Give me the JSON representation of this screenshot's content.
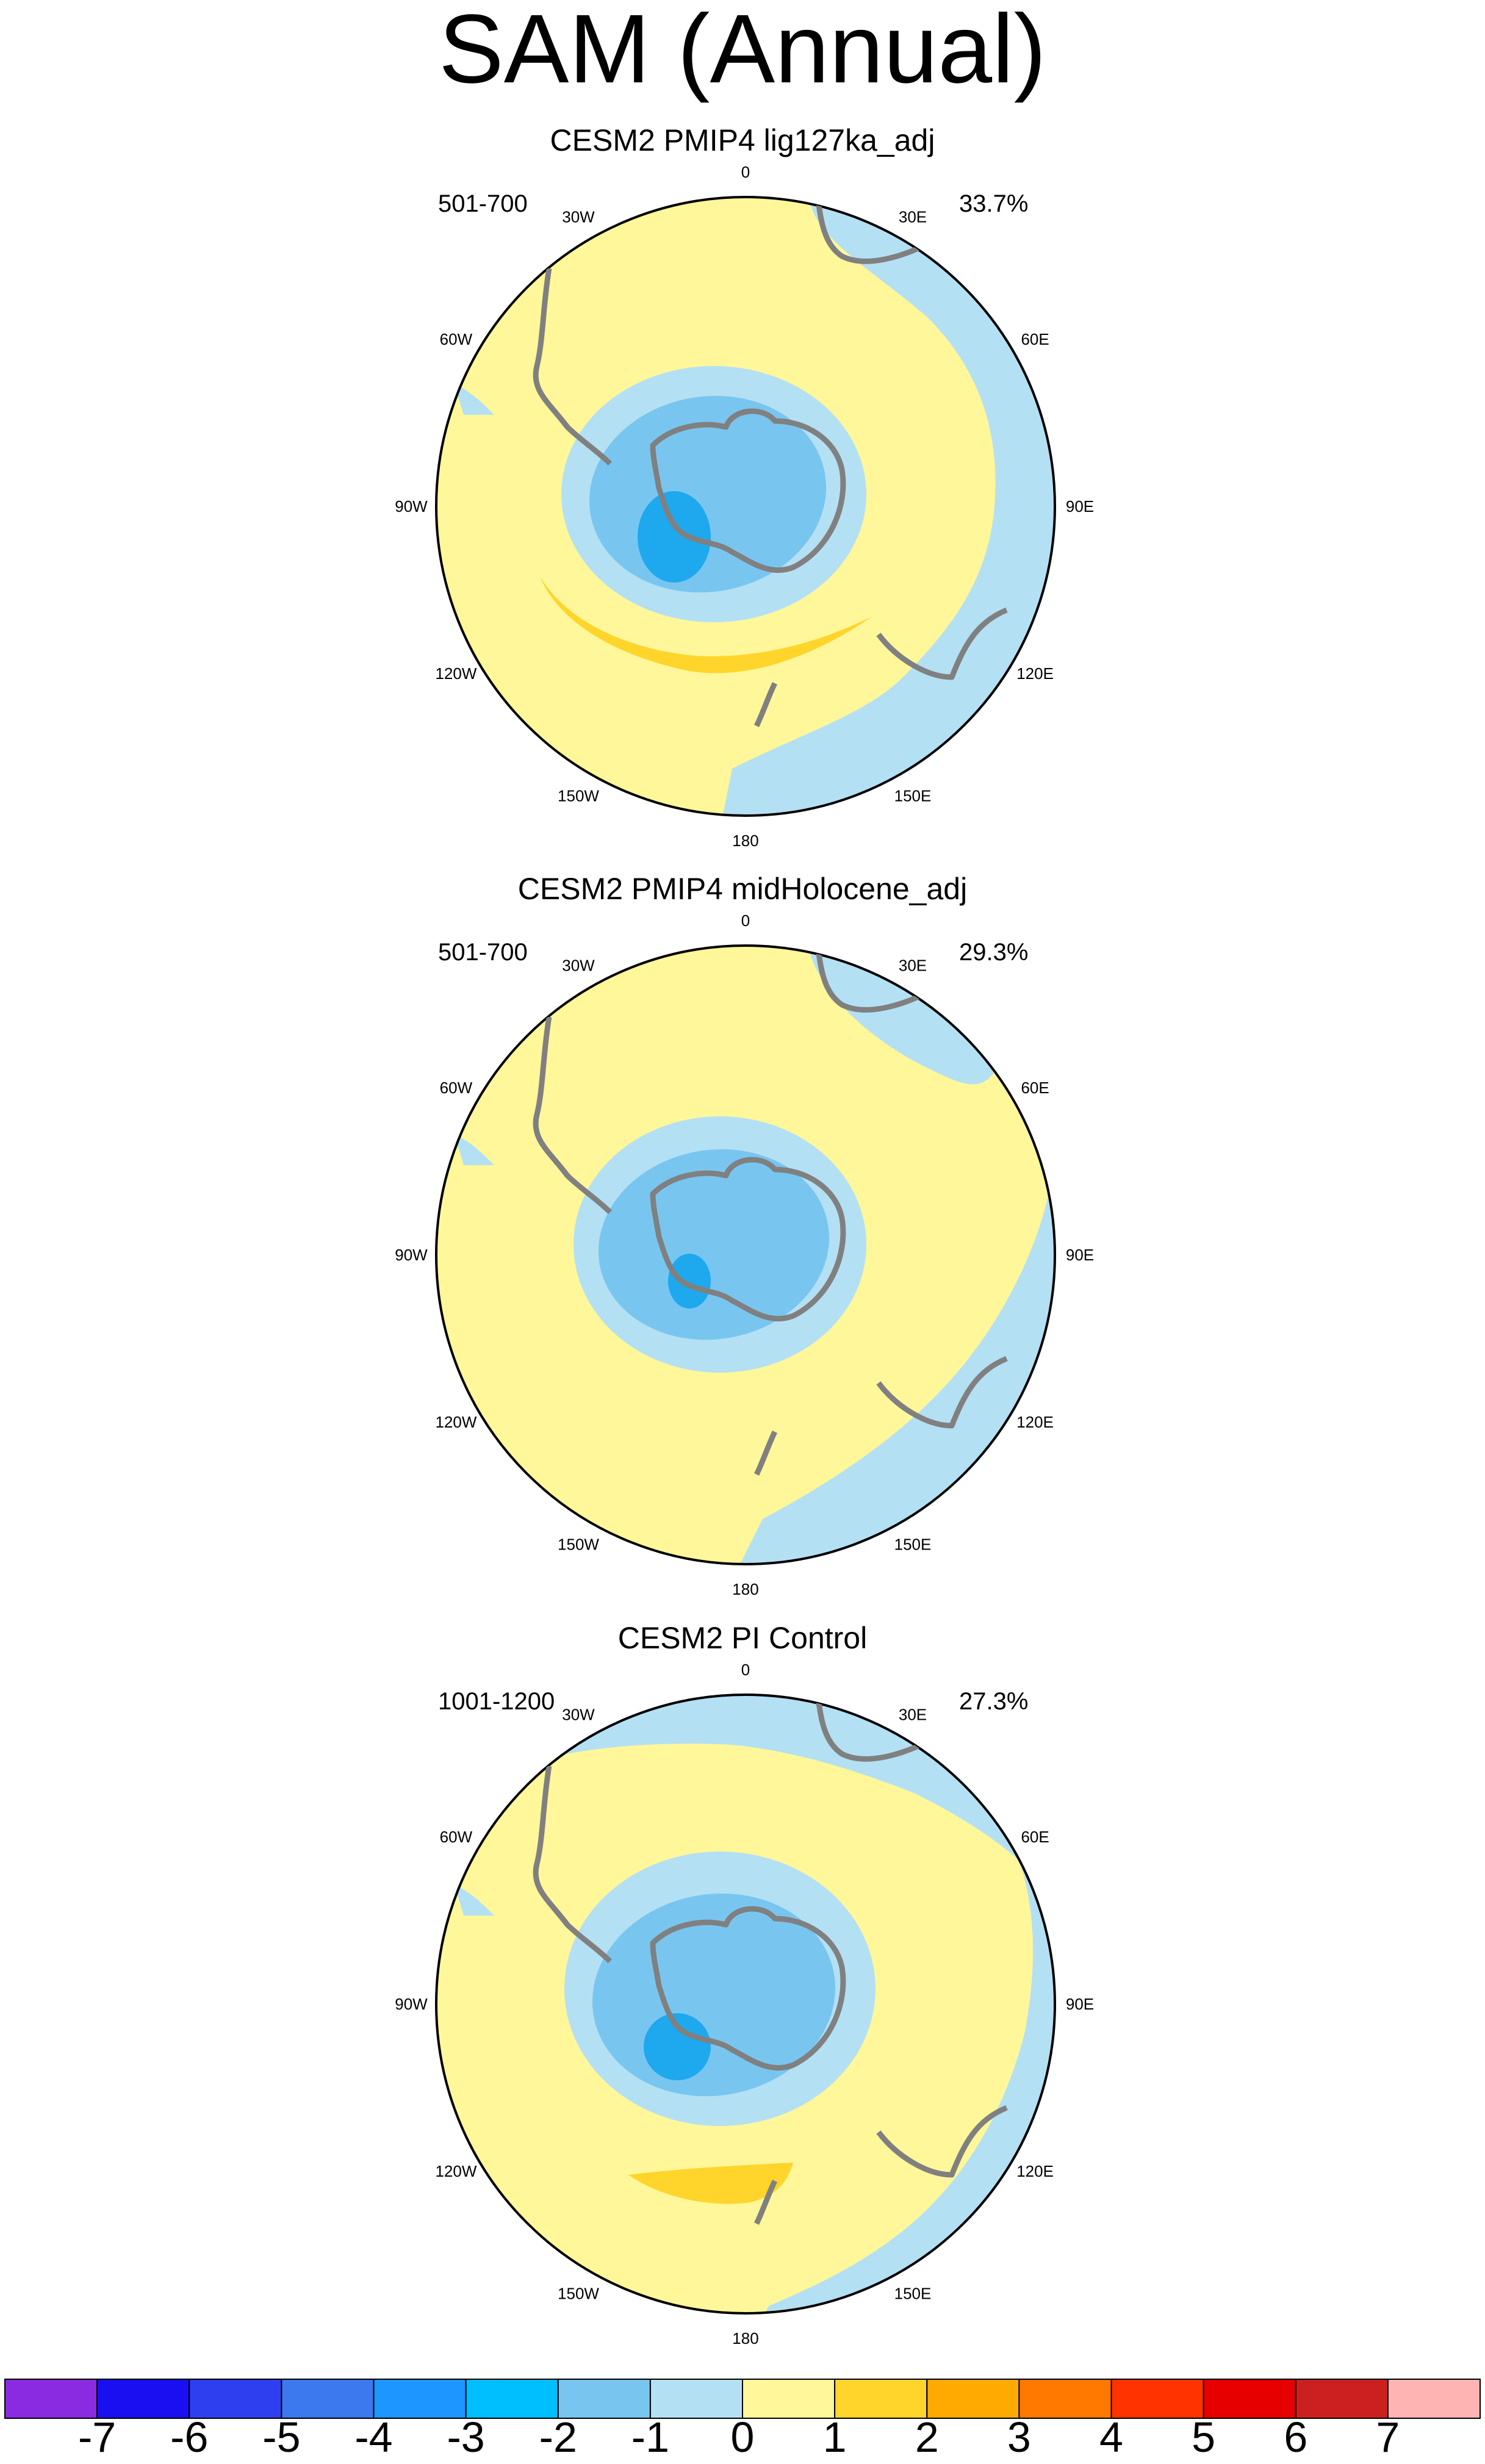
{
  "title": "SAM (Annual)",
  "panels": [
    {
      "title": "CESM2 PMIP4 lig127ka_adj",
      "years": "501-700",
      "variance": "33.7%"
    },
    {
      "title": "CESM2 PMIP4 midHolocene_adj",
      "years": "501-700",
      "variance": "29.3%"
    },
    {
      "title": "CESM2 PI Control",
      "years": "1001-1200",
      "variance": "27.3%"
    }
  ],
  "longitude_labels": [
    "0",
    "30E",
    "60E",
    "90E",
    "120E",
    "150E",
    "180",
    "150W",
    "120W",
    "90W",
    "60W",
    "30W"
  ],
  "colorbar": {
    "labels": [
      "-7",
      "-6",
      "-5",
      "-4",
      "-3",
      "-2",
      "-1",
      "0",
      "1",
      "2",
      "3",
      "4",
      "5",
      "6",
      "7"
    ],
    "colors": [
      "#8a2be2",
      "#1a0ff0",
      "#2e3ff0",
      "#3c78ee",
      "#1e96ff",
      "#00bfff",
      "#78c6f0",
      "#b4e0f4",
      "#fff79a",
      "#ffd52b",
      "#ffaa00",
      "#ff7800",
      "#ff3300",
      "#e60000",
      "#cc2020",
      "#ffb4b4"
    ]
  },
  "palette": {
    "yellow": "#fff79a",
    "gold": "#ffd52b",
    "lightblue": "#b4e0f4",
    "midblue": "#78c6f0",
    "deepblue": "#1ea8ee",
    "coast": "#808080"
  }
}
